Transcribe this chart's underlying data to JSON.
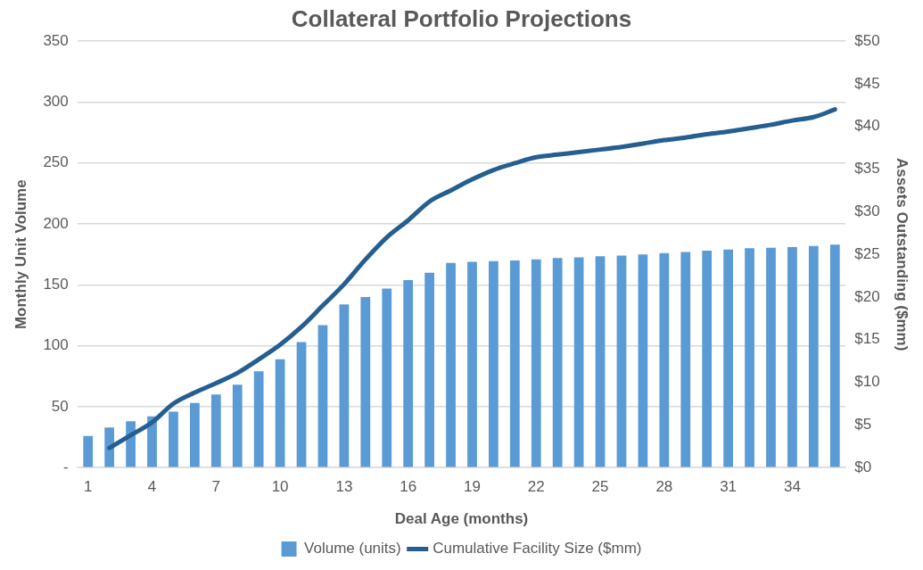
{
  "chart_data": {
    "type": "bar",
    "title": "Collateral Portfolio Projections",
    "xlabel": "Deal Age (months)",
    "ylabel": "Monthly Unit Volume",
    "y2label": "Assets Outstanding ($mm)",
    "categories": [
      "1",
      null,
      null,
      "4",
      null,
      null,
      "7",
      null,
      null,
      "10",
      null,
      null,
      "13",
      null,
      null,
      "16",
      null,
      null,
      "19",
      null,
      null,
      "22",
      null,
      null,
      "25",
      null,
      null,
      "28",
      null,
      null,
      "31",
      null,
      null,
      "34",
      null,
      null
    ],
    "series": [
      {
        "name": "Volume (units)",
        "color": "#5b9bd5",
        "values": [
          26,
          33,
          38,
          42,
          46,
          53,
          60,
          68,
          79,
          89,
          103,
          117,
          134,
          140,
          147,
          154,
          160,
          168,
          169,
          169.5,
          170,
          171,
          172,
          172.5,
          173.5,
          174,
          175,
          176,
          177,
          178,
          179,
          180,
          180.5,
          181,
          182,
          183
        ]
      },
      {
        "name": "Cumulative Facility Size ($mm)",
        "type": "line",
        "axis": "y2",
        "color": "#255e91",
        "values": [
          null,
          2.3,
          3.8,
          5.3,
          7.5,
          8.8,
          9.9,
          11.1,
          12.7,
          14.4,
          16.5,
          19.0,
          21.5,
          24.4,
          27.0,
          29.0,
          31.2,
          32.5,
          33.8,
          34.9,
          35.7,
          36.4,
          36.7,
          37.0,
          37.3,
          37.6,
          38.0,
          38.4,
          38.7,
          39.1,
          39.4,
          39.8,
          40.2,
          40.7,
          41.1,
          42.0
        ]
      }
    ],
    "ylim": [
      0,
      350
    ],
    "yticks": [
      {
        "value": 0,
        "label": "-"
      },
      50,
      100,
      150,
      200,
      250,
      300,
      350
    ],
    "y2lim": [
      0,
      50
    ],
    "y2ticks": [
      {
        "value": 0,
        "label": "$0"
      },
      {
        "value": 5,
        "label": "$5"
      },
      {
        "value": 10,
        "label": "$10"
      },
      {
        "value": 15,
        "label": "$15"
      },
      {
        "value": 20,
        "label": "$20"
      },
      {
        "value": 25,
        "label": "$25"
      },
      {
        "value": 30,
        "label": "$30"
      },
      {
        "value": 35,
        "label": "$35"
      },
      {
        "value": 40,
        "label": "$40"
      },
      {
        "value": 45,
        "label": "$45"
      },
      {
        "value": 50,
        "label": "$50"
      }
    ],
    "grid": "y",
    "legend": "bottom",
    "marker": "none",
    "line_style": "solid"
  }
}
